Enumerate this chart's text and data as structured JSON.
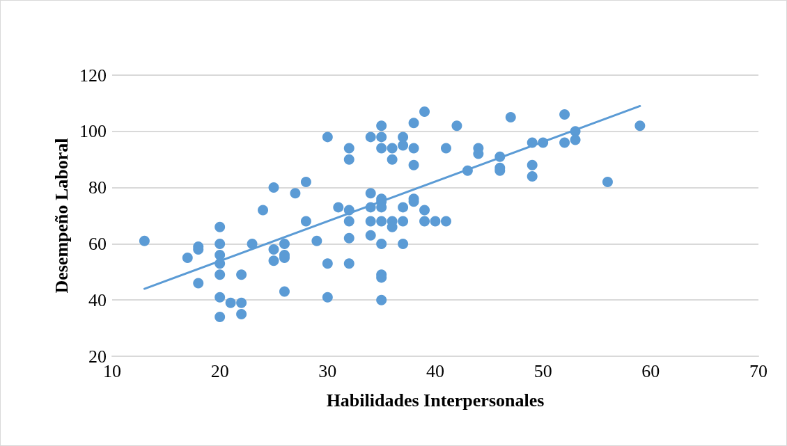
{
  "chart_data": {
    "type": "scatter",
    "xlabel": "Habilidades Interpersonales",
    "ylabel": "Desempeño Laboral",
    "xlim": [
      10,
      70
    ],
    "xticks": [
      10,
      20,
      30,
      40,
      50,
      60,
      70
    ],
    "ylim": [
      20,
      120
    ],
    "yticks": [
      20,
      40,
      60,
      80,
      100,
      120
    ],
    "grid": "y",
    "marker": "circle",
    "series": [
      {
        "color": "#5b9bd5",
        "x": [
          13,
          17,
          18,
          18,
          18,
          20,
          20,
          20,
          20,
          20,
          20,
          20,
          21,
          22,
          22,
          22,
          23,
          24,
          25,
          25,
          25,
          26,
          26,
          26,
          26,
          27,
          28,
          28,
          29,
          30,
          30,
          30,
          31,
          32,
          32,
          32,
          32,
          32,
          32,
          34,
          34,
          34,
          34,
          34,
          35,
          35,
          35,
          35,
          35,
          35,
          35,
          35,
          35,
          35,
          35,
          36,
          36,
          36,
          36,
          37,
          37,
          37,
          37,
          37,
          38,
          38,
          38,
          38,
          38,
          39,
          39,
          39,
          40,
          41,
          41,
          42,
          43,
          44,
          44,
          46,
          46,
          46,
          47,
          49,
          49,
          49,
          50,
          52,
          52,
          53,
          53,
          56,
          59
        ],
        "values": [
          61,
          55,
          59,
          58,
          46,
          66,
          60,
          56,
          53,
          49,
          41,
          34,
          39,
          49,
          39,
          35,
          60,
          72,
          80,
          58,
          54,
          60,
          56,
          55,
          43,
          78,
          82,
          68,
          61,
          98,
          53,
          41,
          73,
          94,
          90,
          72,
          68,
          62,
          53,
          98,
          78,
          73,
          68,
          63,
          102,
          98,
          94,
          76,
          75,
          73,
          68,
          60,
          49,
          48,
          40,
          94,
          90,
          68,
          66,
          98,
          95,
          73,
          68,
          60,
          103,
          94,
          88,
          76,
          75,
          107,
          72,
          68,
          68,
          94,
          68,
          102,
          86,
          94,
          92,
          91,
          87,
          86,
          105,
          96,
          88,
          84,
          96,
          106,
          96,
          100,
          97,
          82,
          102
        ]
      },
      {
        "type": "line",
        "color": "#5b9bd5",
        "x": [
          13,
          59
        ],
        "values": [
          44,
          109
        ],
        "marker": "none"
      }
    ]
  }
}
